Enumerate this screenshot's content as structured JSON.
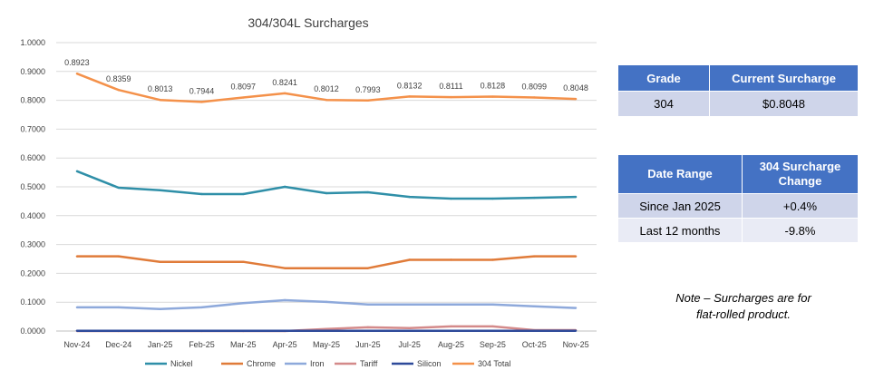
{
  "chart_data": {
    "type": "line",
    "title": "304/304L Surcharges",
    "categories": [
      "Nov-24",
      "Dec-24",
      "Jan-25",
      "Feb-25",
      "Mar-25",
      "Apr-25",
      "May-25",
      "Jun-25",
      "Jul-25",
      "Aug-25",
      "Sep-25",
      "Oct-25",
      "Nov-25"
    ],
    "ylim": [
      0,
      1
    ],
    "yticks": [
      "0.0000",
      "0.1000",
      "0.2000",
      "0.3000",
      "0.4000",
      "0.5000",
      "0.6000",
      "0.7000",
      "0.8000",
      "0.9000",
      "1.0000"
    ],
    "grid": true,
    "legend_position": "bottom",
    "series": [
      {
        "name": "Nickel",
        "color": "#2f8fa8",
        "values": [
          0.554,
          0.497,
          0.488,
          0.475,
          0.475,
          0.5,
          0.478,
          0.481,
          0.465,
          0.459,
          0.459,
          0.462,
          0.465
        ]
      },
      {
        "name": "Chrome",
        "color": "#e07b39",
        "values": [
          0.259,
          0.259,
          0.24,
          0.24,
          0.24,
          0.218,
          0.218,
          0.218,
          0.247,
          0.247,
          0.247,
          0.259,
          0.259
        ]
      },
      {
        "name": "Iron",
        "color": "#8ea9db",
        "values": [
          0.082,
          0.082,
          0.076,
          0.082,
          0.097,
          0.107,
          0.101,
          0.092,
          0.092,
          0.092,
          0.092,
          0.086,
          0.08
        ]
      },
      {
        "name": "Tariff",
        "color": "#d48a8a",
        "values": [
          0,
          0,
          0,
          0,
          0,
          0,
          0.007,
          0.013,
          0.01,
          0.016,
          0.016,
          0.003,
          0.003
        ]
      },
      {
        "name": "Silicon",
        "color": "#2e4a9a",
        "values": [
          0.001,
          0.001,
          0.001,
          0.001,
          0.001,
          0.001,
          0.001,
          0.001,
          0.001,
          0.001,
          0.001,
          0.001,
          0.001
        ]
      },
      {
        "name": "304 Total",
        "color": "#f4914a",
        "values": [
          0.8923,
          0.8359,
          0.8013,
          0.7944,
          0.8097,
          0.8241,
          0.8012,
          0.7993,
          0.8132,
          0.8111,
          0.8128,
          0.8099,
          0.8048
        ],
        "labels": [
          "0.8923",
          "0.8359",
          "0.8013",
          "0.7944",
          "0.8097",
          "0.8241",
          "0.8012",
          "0.7993",
          "0.8132",
          "0.8111",
          "0.8128",
          "0.8099",
          "0.8048"
        ]
      }
    ]
  },
  "table1": {
    "headers": [
      "Grade",
      "Current Surcharge"
    ],
    "row": [
      "304",
      "$0.8048"
    ]
  },
  "table2": {
    "headers": [
      "Date Range",
      "304 Surcharge Change"
    ],
    "rows": [
      [
        "Since Jan 2025",
        "+0.4%"
      ],
      [
        "Last 12 months",
        "-9.8%"
      ]
    ]
  },
  "note": {
    "line1": "Note – Surcharges are for",
    "line2": "flat-rolled product."
  }
}
